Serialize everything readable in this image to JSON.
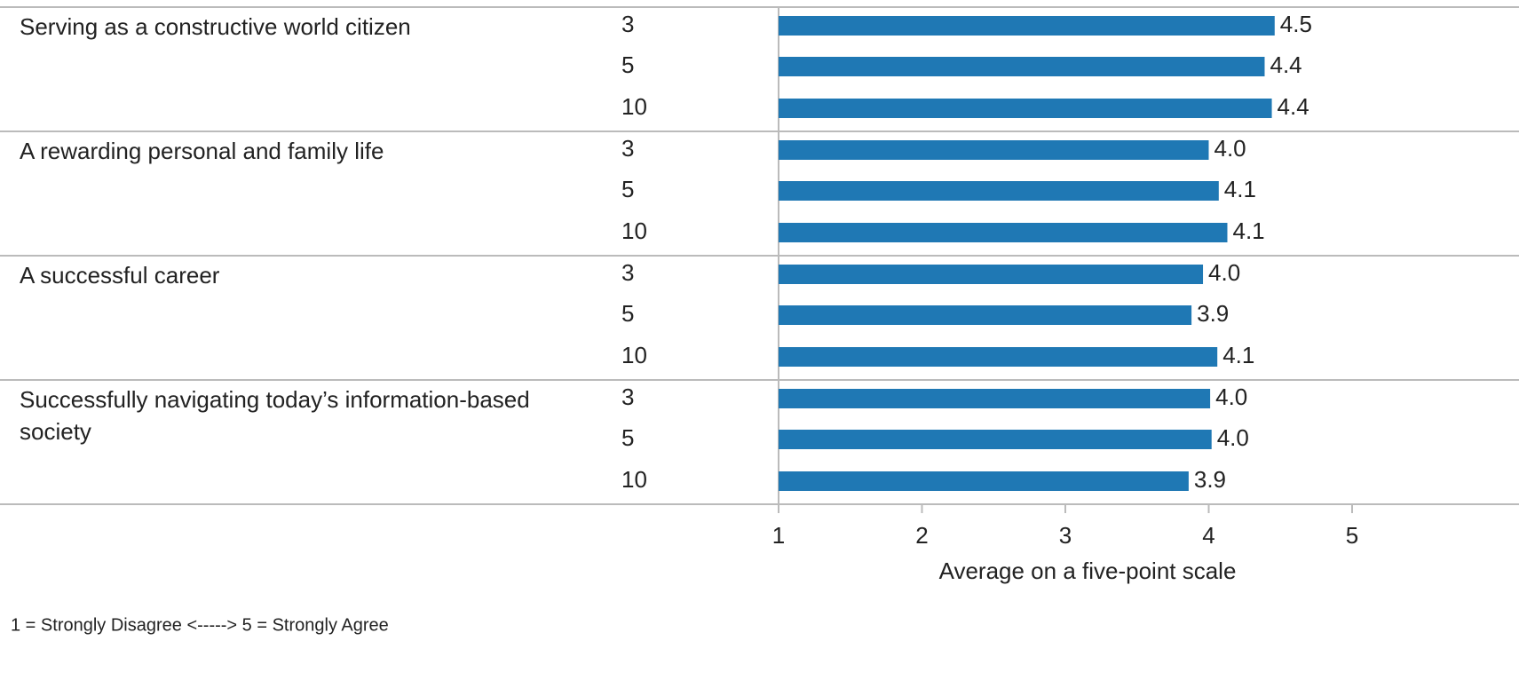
{
  "chart_data": {
    "type": "bar",
    "groups": [
      {
        "name": "Serving as a constructive world citizen",
        "categories": [
          "3",
          "5",
          "10"
        ],
        "values": [
          4.46,
          4.39,
          4.44
        ],
        "value_labels": [
          "4.5",
          "4.4",
          "4.4"
        ]
      },
      {
        "name": "A rewarding personal and family life",
        "categories": [
          "3",
          "5",
          "10"
        ],
        "values": [
          4.0,
          4.07,
          4.13
        ],
        "value_labels": [
          "4.0",
          "4.1",
          "4.1"
        ]
      },
      {
        "name": "A successful career",
        "categories": [
          "3",
          "5",
          "10"
        ],
        "values": [
          3.96,
          3.88,
          4.06
        ],
        "value_labels": [
          "4.0",
          "3.9",
          "4.1"
        ]
      },
      {
        "name": "Successfully navigating today’s information-based society",
        "categories": [
          "3",
          "5",
          "10"
        ],
        "values": [
          4.01,
          4.02,
          3.86
        ],
        "value_labels": [
          "4.0",
          "4.0",
          "3.9"
        ]
      }
    ],
    "color": "#1f78b4",
    "xlim": [
      1,
      5
    ],
    "xticks": [
      1,
      2,
      3,
      4,
      5
    ],
    "xlabel": "Average on a five-point scale",
    "note": "1 = Strongly Disagree <-----> 5 = Strongly Agree"
  }
}
